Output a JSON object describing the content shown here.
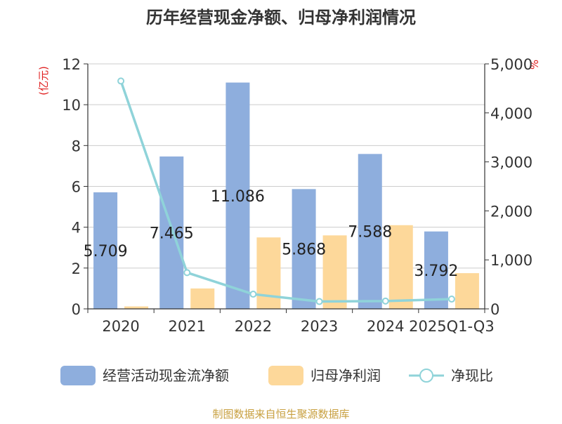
{
  "chart_data": {
    "type": "bar",
    "title": "历年经营现金净额、归母净利润情况",
    "categories": [
      "2020",
      "2021",
      "2022",
      "2023",
      "2024",
      "2025Q1-Q3"
    ],
    "y_left": {
      "unit_label": "(亿元)",
      "ylim": [
        0,
        12
      ],
      "ticks": [
        "0",
        "2",
        "4",
        "6",
        "8",
        "10",
        "12"
      ]
    },
    "y_right": {
      "unit_label": "%",
      "ylim": [
        0,
        5000
      ],
      "ticks": [
        "0",
        "1,000",
        "2,000",
        "3,000",
        "4,000",
        "5,000"
      ]
    },
    "series": [
      {
        "name": "经营活动现金流净额",
        "type": "bar",
        "axis": "left",
        "color": "#8eaedd",
        "values": [
          5.709,
          7.465,
          11.086,
          5.868,
          7.588,
          3.792
        ],
        "labels": [
          "5.709",
          "7.465",
          "11.086",
          "5.868",
          "7.588",
          "3.792"
        ]
      },
      {
        "name": "归母净利润",
        "type": "bar",
        "axis": "left",
        "color": "#fdd89a",
        "values": [
          0.12,
          1.0,
          3.5,
          3.6,
          4.1,
          1.75
        ]
      },
      {
        "name": "净现比",
        "type": "line",
        "axis": "right",
        "color": "#8fd3d9",
        "values": [
          4650,
          740,
          300,
          150,
          160,
          200
        ]
      }
    ],
    "legend": "bottom",
    "grid": true
  },
  "footer": {
    "source": "制图数据来自恒生聚源数据库"
  }
}
